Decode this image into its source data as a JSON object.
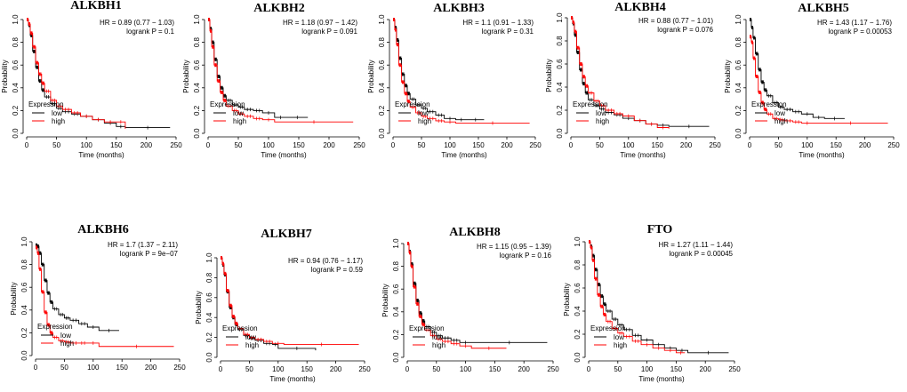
{
  "chart_data": [
    {
      "type": "line",
      "title": "ALKBH1",
      "hr_text": "HR = 0.89 (0.77 − 1.03)",
      "p_text": "logrank P = 0.1",
      "xlabel": "Time (months)",
      "ylabel": "Probability",
      "xlim": [
        0,
        250
      ],
      "ylim": [
        0,
        1
      ],
      "xticks": [
        0,
        50,
        100,
        150,
        200,
        250
      ],
      "yticks": [
        0.0,
        0.2,
        0.4,
        0.6,
        0.8,
        1.0
      ],
      "legend": {
        "title": "Expression",
        "entries": [
          "low",
          "high"
        ],
        "position": "bottom-left"
      },
      "series": [
        {
          "name": "low",
          "color": "#000000",
          "x": [
            0,
            3,
            6,
            10,
            15,
            20,
            25,
            30,
            40,
            50,
            60,
            75,
            90,
            110,
            130,
            150,
            165,
            240
          ],
          "y": [
            1.0,
            0.95,
            0.86,
            0.72,
            0.58,
            0.46,
            0.38,
            0.32,
            0.26,
            0.22,
            0.19,
            0.17,
            0.15,
            0.12,
            0.09,
            0.06,
            0.05,
            0.05
          ]
        },
        {
          "name": "high",
          "color": "#ff0000",
          "x": [
            0,
            3,
            6,
            10,
            15,
            20,
            25,
            30,
            40,
            50,
            60,
            75,
            90,
            110,
            130,
            150,
            165
          ],
          "y": [
            1.0,
            0.96,
            0.88,
            0.76,
            0.62,
            0.52,
            0.44,
            0.37,
            0.29,
            0.24,
            0.21,
            0.18,
            0.15,
            0.12,
            0.1,
            0.1,
            0.04
          ]
        }
      ]
    },
    {
      "type": "line",
      "title": "ALKBH2",
      "hr_text": "HR = 1.18 (0.97 − 1.42)",
      "p_text": "logrank P = 0.091",
      "xlabel": "Time (months)",
      "ylabel": "Probability",
      "xlim": [
        0,
        250
      ],
      "ylim": [
        0,
        1
      ],
      "xticks": [
        0,
        50,
        100,
        150,
        200,
        250
      ],
      "yticks": [
        0.0,
        0.2,
        0.4,
        0.6,
        0.8,
        1.0
      ],
      "legend": {
        "title": "Expression",
        "entries": [
          "low",
          "high"
        ],
        "position": "bottom-left"
      },
      "series": [
        {
          "name": "low",
          "color": "#000000",
          "x": [
            0,
            3,
            6,
            10,
            15,
            20,
            25,
            30,
            40,
            50,
            60,
            75,
            90,
            110,
            130,
            165
          ],
          "y": [
            1.0,
            0.92,
            0.8,
            0.65,
            0.5,
            0.4,
            0.33,
            0.29,
            0.25,
            0.23,
            0.21,
            0.2,
            0.18,
            0.14,
            0.14,
            0.14
          ]
        },
        {
          "name": "high",
          "color": "#ff0000",
          "x": [
            0,
            3,
            6,
            10,
            15,
            20,
            25,
            30,
            40,
            50,
            60,
            75,
            90,
            110,
            240
          ],
          "y": [
            1.0,
            0.9,
            0.76,
            0.6,
            0.46,
            0.36,
            0.29,
            0.24,
            0.2,
            0.17,
            0.15,
            0.13,
            0.12,
            0.1,
            0.1
          ]
        }
      ]
    },
    {
      "type": "line",
      "title": "ALKBH3",
      "hr_text": "HR = 1.1 (0.91 − 1.33)",
      "p_text": "logrank P = 0.31",
      "xlabel": "Time (months)",
      "ylabel": "Probability",
      "xlim": [
        0,
        250
      ],
      "ylim": [
        0,
        1
      ],
      "xticks": [
        0,
        50,
        100,
        150,
        200,
        250
      ],
      "yticks": [
        0.0,
        0.2,
        0.4,
        0.6,
        0.8,
        1.0
      ],
      "legend": {
        "title": "Expression",
        "entries": [
          "low",
          "high"
        ],
        "position": "bottom-left"
      },
      "series": [
        {
          "name": "low",
          "color": "#000000",
          "x": [
            0,
            3,
            6,
            10,
            15,
            20,
            25,
            30,
            40,
            50,
            60,
            75,
            90,
            110,
            130,
            160
          ],
          "y": [
            1.0,
            0.93,
            0.82,
            0.66,
            0.52,
            0.42,
            0.35,
            0.3,
            0.25,
            0.22,
            0.19,
            0.16,
            0.13,
            0.12,
            0.12,
            0.12
          ]
        },
        {
          "name": "high",
          "color": "#ff0000",
          "x": [
            0,
            3,
            6,
            10,
            15,
            20,
            25,
            30,
            40,
            50,
            60,
            75,
            90,
            110,
            240
          ],
          "y": [
            1.0,
            0.91,
            0.78,
            0.6,
            0.45,
            0.35,
            0.28,
            0.23,
            0.18,
            0.15,
            0.13,
            0.11,
            0.1,
            0.09,
            0.09
          ]
        }
      ]
    },
    {
      "type": "line",
      "title": "ALKBH4",
      "hr_text": "HR = 0.88 (0.77 − 1.01)",
      "p_text": "logrank P = 0.076",
      "xlabel": "Time (months)",
      "ylabel": "Probability",
      "xlim": [
        0,
        250
      ],
      "ylim": [
        0,
        1
      ],
      "xticks": [
        0,
        50,
        100,
        150,
        200,
        250
      ],
      "yticks": [
        0.0,
        0.2,
        0.4,
        0.6,
        0.8,
        1.0
      ],
      "legend": {
        "title": "Expression",
        "entries": [
          "low",
          "high"
        ],
        "position": "bottom-left"
      },
      "series": [
        {
          "name": "low",
          "color": "#000000",
          "x": [
            0,
            3,
            6,
            10,
            15,
            20,
            25,
            30,
            40,
            50,
            60,
            75,
            90,
            110,
            130,
            150,
            170,
            240
          ],
          "y": [
            1.0,
            0.95,
            0.85,
            0.7,
            0.55,
            0.43,
            0.35,
            0.29,
            0.24,
            0.21,
            0.18,
            0.16,
            0.13,
            0.11,
            0.08,
            0.07,
            0.06,
            0.06
          ]
        },
        {
          "name": "high",
          "color": "#ff0000",
          "x": [
            0,
            3,
            6,
            10,
            15,
            20,
            25,
            30,
            40,
            50,
            60,
            75,
            90,
            110,
            130,
            150,
            170
          ],
          "y": [
            1.0,
            0.96,
            0.88,
            0.74,
            0.6,
            0.49,
            0.41,
            0.35,
            0.28,
            0.24,
            0.2,
            0.17,
            0.15,
            0.11,
            0.08,
            0.05,
            0.04
          ]
        }
      ]
    },
    {
      "type": "line",
      "title": "ALKBH5",
      "hr_text": "HR = 1.43 (1.17 − 1.76)",
      "p_text": "logrank P = 0.00053",
      "xlabel": "Time (months)",
      "ylabel": "Probability",
      "xlim": [
        0,
        250
      ],
      "ylim": [
        0,
        1
      ],
      "xticks": [
        0,
        50,
        100,
        150,
        200,
        250
      ],
      "yticks": [
        0.0,
        0.2,
        0.4,
        0.6,
        0.8,
        1.0
      ],
      "legend": {
        "title": "Expression",
        "entries": [
          "low",
          "high"
        ],
        "position": "bottom-left"
      },
      "series": [
        {
          "name": "low",
          "color": "#000000",
          "x": [
            0,
            3,
            6,
            10,
            15,
            20,
            25,
            30,
            40,
            50,
            60,
            75,
            90,
            110,
            130,
            165
          ],
          "y": [
            1.0,
            0.93,
            0.84,
            0.7,
            0.56,
            0.45,
            0.38,
            0.33,
            0.27,
            0.23,
            0.21,
            0.19,
            0.17,
            0.14,
            0.13,
            0.13
          ]
        },
        {
          "name": "high",
          "color": "#ff0000",
          "x": [
            0,
            3,
            6,
            10,
            15,
            20,
            25,
            30,
            40,
            50,
            60,
            75,
            90,
            110,
            240
          ],
          "y": [
            0.85,
            0.8,
            0.66,
            0.5,
            0.36,
            0.27,
            0.21,
            0.17,
            0.13,
            0.12,
            0.11,
            0.1,
            0.09,
            0.09,
            0.09
          ]
        }
      ]
    },
    {
      "type": "line",
      "title": "ALKBH6",
      "hr_text": "HR = 1.7 (1.37 − 2.11)",
      "p_text": "logrank P = 9e−07",
      "xlabel": "",
      "ylabel": "Probability",
      "xlim": [
        0,
        250
      ],
      "ylim": [
        0,
        1
      ],
      "xticks": [
        0,
        50,
        100,
        150,
        200,
        250
      ],
      "yticks": [
        0.0,
        0.2,
        0.4,
        0.6,
        0.8,
        1.0
      ],
      "legend": {
        "title": "Expression",
        "entries": [
          "low",
          "high"
        ],
        "position": "bottom-left"
      },
      "series": [
        {
          "name": "low",
          "color": "#000000",
          "x": [
            0,
            3,
            6,
            10,
            15,
            20,
            25,
            30,
            40,
            50,
            60,
            75,
            90,
            110,
            145
          ],
          "y": [
            0.97,
            0.96,
            0.9,
            0.8,
            0.66,
            0.55,
            0.47,
            0.41,
            0.36,
            0.33,
            0.31,
            0.28,
            0.25,
            0.22,
            0.22
          ]
        },
        {
          "name": "high",
          "color": "#ff0000",
          "x": [
            0,
            3,
            6,
            10,
            15,
            20,
            25,
            30,
            40,
            50,
            60,
            75,
            90,
            110,
            240
          ],
          "y": [
            0.95,
            0.9,
            0.76,
            0.56,
            0.38,
            0.27,
            0.2,
            0.16,
            0.13,
            0.12,
            0.11,
            0.11,
            0.11,
            0.08,
            0.08
          ]
        }
      ]
    },
    {
      "type": "line",
      "title": "ALKBH7",
      "hr_text": "HR = 0.94 (0.76 − 1.17)",
      "p_text": "logrank P = 0.59",
      "xlabel": "Time (months)",
      "ylabel": "Probability",
      "xlim": [
        0,
        250
      ],
      "ylim": [
        0,
        1
      ],
      "xticks": [
        0,
        50,
        100,
        150,
        200,
        250
      ],
      "yticks": [
        0.0,
        0.2,
        0.4,
        0.6,
        0.8,
        1.0
      ],
      "legend": {
        "title": "Expression",
        "entries": [
          "low",
          "high"
        ],
        "position": "bottom-left"
      },
      "series": [
        {
          "name": "low",
          "color": "#000000",
          "x": [
            0,
            3,
            6,
            10,
            15,
            20,
            25,
            30,
            40,
            50,
            60,
            75,
            90,
            100,
            165
          ],
          "y": [
            1.0,
            0.93,
            0.83,
            0.66,
            0.5,
            0.4,
            0.33,
            0.28,
            0.22,
            0.19,
            0.17,
            0.14,
            0.13,
            0.09,
            0.07
          ]
        },
        {
          "name": "high",
          "color": "#ff0000",
          "x": [
            0,
            3,
            6,
            10,
            15,
            20,
            25,
            30,
            40,
            50,
            60,
            75,
            90,
            110,
            240
          ],
          "y": [
            1.0,
            0.94,
            0.84,
            0.67,
            0.52,
            0.41,
            0.34,
            0.29,
            0.23,
            0.2,
            0.18,
            0.16,
            0.14,
            0.13,
            0.13
          ]
        }
      ]
    },
    {
      "type": "line",
      "title": "ALKBH8",
      "hr_text": "HR = 1.15 (0.95 − 1.39)",
      "p_text": "logrank P = 0.16",
      "xlabel": "",
      "ylabel": "Probability",
      "xlim": [
        0,
        250
      ],
      "ylim": [
        0,
        1
      ],
      "xticks": [
        0,
        50,
        100,
        150,
        200,
        250
      ],
      "yticks": [
        0.0,
        0.2,
        0.4,
        0.6,
        0.8,
        1.0
      ],
      "legend": {
        "title": "Expression",
        "entries": [
          "low",
          "high"
        ],
        "position": "bottom-left"
      },
      "series": [
        {
          "name": "low",
          "color": "#000000",
          "x": [
            0,
            3,
            6,
            10,
            15,
            20,
            25,
            30,
            40,
            50,
            60,
            75,
            90,
            110,
            240
          ],
          "y": [
            1.0,
            0.93,
            0.82,
            0.65,
            0.5,
            0.39,
            0.32,
            0.27,
            0.22,
            0.19,
            0.17,
            0.15,
            0.13,
            0.13,
            0.13
          ]
        },
        {
          "name": "high",
          "color": "#ff0000",
          "x": [
            0,
            3,
            6,
            10,
            15,
            20,
            25,
            30,
            40,
            50,
            60,
            75,
            90,
            110,
            170
          ],
          "y": [
            1.0,
            0.92,
            0.8,
            0.62,
            0.47,
            0.36,
            0.29,
            0.24,
            0.19,
            0.16,
            0.14,
            0.12,
            0.1,
            0.08,
            0.08
          ]
        }
      ]
    },
    {
      "type": "line",
      "title": "FTO",
      "hr_text": "HR = 1.27 (1.11 − 1.44)",
      "p_text": "logrank P = 0.00045",
      "xlabel": "Time (months)",
      "ylabel": "Probability",
      "xlim": [
        0,
        250
      ],
      "ylim": [
        0,
        1
      ],
      "xticks": [
        0,
        50,
        100,
        150,
        200,
        250
      ],
      "yticks": [
        0.0,
        0.2,
        0.4,
        0.6,
        0.8,
        1.0
      ],
      "legend": {
        "title": "Expression",
        "entries": [
          "low",
          "high"
        ],
        "position": "bottom-left"
      },
      "series": [
        {
          "name": "low",
          "color": "#000000",
          "x": [
            0,
            3,
            6,
            10,
            15,
            20,
            25,
            30,
            40,
            50,
            60,
            75,
            90,
            110,
            130,
            150,
            170,
            240
          ],
          "y": [
            1.0,
            0.96,
            0.88,
            0.76,
            0.63,
            0.53,
            0.46,
            0.4,
            0.33,
            0.28,
            0.24,
            0.19,
            0.15,
            0.11,
            0.08,
            0.06,
            0.04,
            0.04
          ]
        },
        {
          "name": "high",
          "color": "#ff0000",
          "x": [
            0,
            3,
            6,
            10,
            15,
            20,
            25,
            30,
            40,
            50,
            60,
            75,
            90,
            110,
            130,
            150,
            165
          ],
          "y": [
            1.0,
            0.95,
            0.84,
            0.68,
            0.54,
            0.44,
            0.37,
            0.31,
            0.25,
            0.21,
            0.18,
            0.14,
            0.11,
            0.08,
            0.06,
            0.04,
            0.04
          ]
        }
      ]
    }
  ]
}
